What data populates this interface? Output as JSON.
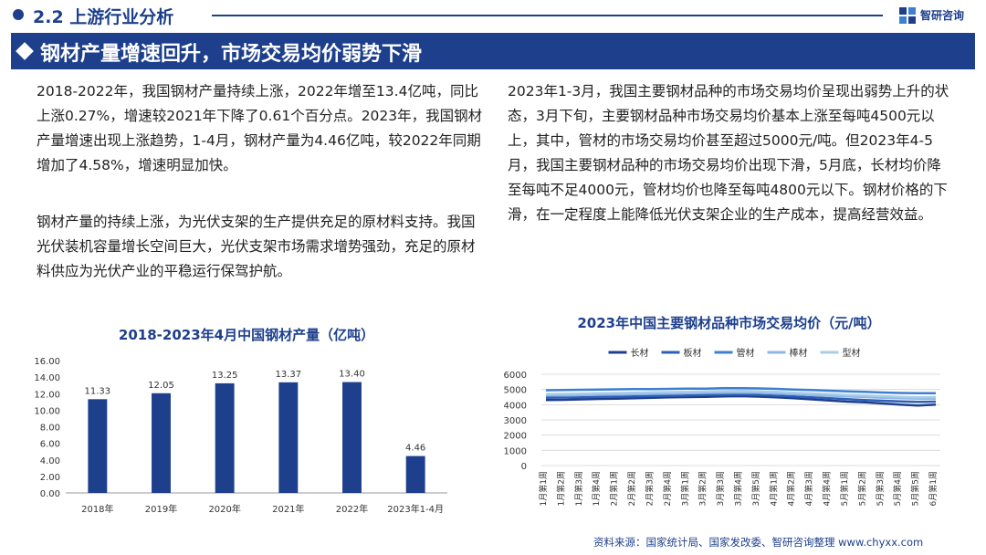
{
  "section": {
    "title": "2.2 上游行业分析"
  },
  "logo": {
    "text": "智研咨询",
    "icon": "zhiyan-logo-icon"
  },
  "banner": {
    "title": "钢材产量增速回升，市场交易均价弱势下滑"
  },
  "paragraphs": {
    "left_1": "2018-2022年，我国钢材产量持续上涨，2022年增至13.4亿吨，同比上涨0.27%，增速较2021年下降了0.61个百分点。2023年，我国钢材产量增速出现上涨趋势，1-4月，钢材产量为4.46亿吨，较2022年同期增加了4.58%，增速明显加快。",
    "left_2": "钢材产量的持续上涨，为光伏支架的生产提供充足的原材料支持。我国光伏装机容量增长空间巨大，光伏支架市场需求增势强劲，充足的原材料供应为光伏产业的平稳运行保驾护航。",
    "right": "2023年1-3月，我国主要钢材品种的市场交易均价呈现出弱势上升的状态，3月下旬，主要钢材品种市场交易均价基本上涨至每吨4500元以上，其中，管材的市场交易均价甚至超过5000元/吨。但2023年4-5月，我国主要钢材品种的市场交易均价出现下滑，5月底，长材均价降至每吨不足4000元，管材均价也降至每吨4800元以下。钢材价格的下滑，在一定程度上能降低光伏支架企业的生产成本，提高经营效益。"
  },
  "colors": {
    "brand": "#1d3f8c",
    "bar": "#1d3f8c"
  },
  "source": "资料来源：国家统计局、国家发改委、智研咨询整理 www.chyxx.com",
  "chart_data": [
    {
      "type": "bar",
      "title": "2018-2023年4月中国钢材产量（亿吨）",
      "categories": [
        "2018年",
        "2019年",
        "2020年",
        "2021年",
        "2022年",
        "2023年1-4月"
      ],
      "values": [
        11.33,
        12.05,
        13.25,
        13.37,
        13.4,
        4.46
      ],
      "value_labels": [
        "11.33",
        "12.05",
        "13.25",
        "13.37",
        "13.40",
        "4.46"
      ],
      "ylim": [
        0,
        16
      ],
      "yticks": [
        "0.00",
        "2.00",
        "4.00",
        "6.00",
        "8.00",
        "10.00",
        "12.00",
        "14.00",
        "16.00"
      ],
      "grid": false,
      "color": "#1d3f8c"
    },
    {
      "type": "line",
      "title": "2023年中国主要钢材品种市场交易均价（元/吨）",
      "ylim": [
        0,
        6000
      ],
      "yticks": [
        "0",
        "1000",
        "2000",
        "3000",
        "4000",
        "5000",
        "6000"
      ],
      "legend_position": "top",
      "grid": true,
      "x": [
        "1月第1周",
        "1月第2周",
        "1月第3周",
        "1月第4周",
        "2月第1周",
        "2月第2周",
        "2月第3周",
        "2月第4周",
        "3月第1周",
        "3月第2周",
        "3月第3周",
        "3月第4周",
        "3月第5周",
        "4月第1周",
        "4月第2周",
        "4月第3周",
        "4月第4周",
        "5月第1周",
        "5月第2周",
        "5月第3周",
        "5月第4周",
        "5月第5周",
        "6月第1周"
      ],
      "series": [
        {
          "name": "长材",
          "color": "#1d3f8c",
          "values": [
            4300,
            4320,
            4350,
            4380,
            4400,
            4420,
            4450,
            4480,
            4500,
            4520,
            4550,
            4560,
            4530,
            4480,
            4420,
            4350,
            4280,
            4200,
            4150,
            4080,
            4000,
            3950,
            4000
          ]
        },
        {
          "name": "板材",
          "color": "#2e5fb8",
          "values": [
            4450,
            4470,
            4490,
            4510,
            4530,
            4550,
            4570,
            4590,
            4610,
            4630,
            4650,
            4660,
            4640,
            4590,
            4540,
            4480,
            4420,
            4360,
            4310,
            4260,
            4220,
            4180,
            4200
          ]
        },
        {
          "name": "管材",
          "color": "#3d7fd0",
          "values": [
            4950,
            4960,
            4980,
            5000,
            5010,
            5020,
            5030,
            5040,
            5050,
            5060,
            5080,
            5090,
            5070,
            5040,
            5000,
            4960,
            4920,
            4880,
            4840,
            4800,
            4770,
            4750,
            4760
          ]
        },
        {
          "name": "棒材",
          "color": "#8db6e3",
          "values": [
            4600,
            4610,
            4630,
            4650,
            4670,
            4690,
            4710,
            4730,
            4750,
            4770,
            4790,
            4800,
            4780,
            4740,
            4690,
            4640,
            4590,
            4540,
            4500,
            4460,
            4420,
            4390,
            4400
          ]
        },
        {
          "name": "型材",
          "color": "#a8cdea",
          "values": [
            4700,
            4710,
            4730,
            4750,
            4770,
            4790,
            4810,
            4830,
            4850,
            4870,
            4890,
            4900,
            4880,
            4840,
            4790,
            4740,
            4690,
            4640,
            4600,
            4560,
            4520,
            4490,
            4500
          ]
        }
      ]
    }
  ]
}
